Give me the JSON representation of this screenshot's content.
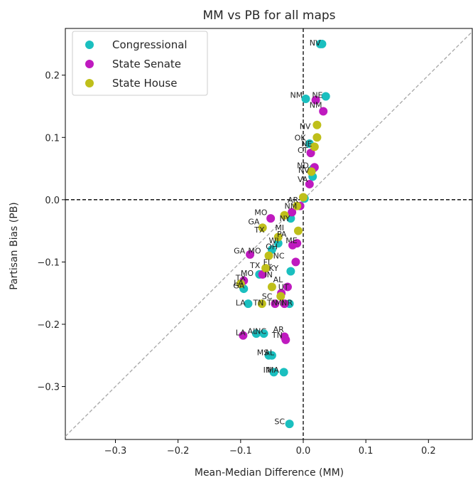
{
  "chart_data": {
    "type": "scatter",
    "title": "MM vs PB for all maps",
    "xlabel": "Mean-Median Difference (MM)",
    "ylabel": "Partisan Bias (PB)",
    "xlim": [
      -0.38,
      0.27
    ],
    "ylim": [
      -0.385,
      0.275
    ],
    "xticks": [
      -0.3,
      -0.2,
      -0.1,
      0.0,
      0.1,
      0.2
    ],
    "xtick_labels": [
      "−0.3",
      "−0.2",
      "−0.1",
      "0.0",
      "0.1",
      "0.2"
    ],
    "yticks": [
      0.2,
      0.1,
      0.0,
      -0.1,
      -0.2,
      -0.3
    ],
    "ytick_labels": [
      "0.2",
      "0.1",
      "0.0",
      "−0.1",
      "−0.2",
      "−0.3"
    ],
    "legend_position": "top-left",
    "grid": false,
    "reference_lines": [
      "x = 0",
      "y = 0",
      "y = x"
    ],
    "series": [
      {
        "name": "Congressional",
        "color": "#1abfbf",
        "points": [
          {
            "label": "NV",
            "x": 0.027,
            "y": 0.25
          },
          {
            "label": "",
            "x": 0.03,
            "y": 0.25
          },
          {
            "label": "NE",
            "x": 0.036,
            "y": 0.166
          },
          {
            "label": "NM",
            "x": 0.004,
            "y": 0.162
          },
          {
            "label": "",
            "x": 0.016,
            "y": 0.05
          },
          {
            "label": "",
            "x": 0.015,
            "y": 0.037
          },
          {
            "label": "",
            "x": 0.01,
            "y": 0.09
          },
          {
            "label": "",
            "x": 0.002,
            "y": 0.002
          },
          {
            "label": "",
            "x": -0.02,
            "y": -0.03
          },
          {
            "label": "",
            "x": -0.04,
            "y": -0.07
          },
          {
            "label": "",
            "x": -0.05,
            "y": -0.08
          },
          {
            "label": "",
            "x": -0.02,
            "y": -0.115
          },
          {
            "label": "",
            "x": -0.07,
            "y": -0.12
          },
          {
            "label": "",
            "x": -0.095,
            "y": -0.143
          },
          {
            "label": "",
            "x": -0.022,
            "y": -0.167
          },
          {
            "label": "LA",
            "x": -0.088,
            "y": -0.167
          },
          {
            "label": "AR",
            "x": -0.075,
            "y": -0.215
          },
          {
            "label": "NC",
            "x": -0.063,
            "y": -0.215
          },
          {
            "label": "MS",
            "x": -0.055,
            "y": -0.25
          },
          {
            "label": "",
            "x": -0.05,
            "y": -0.25
          },
          {
            "label": "MA",
            "x": -0.047,
            "y": -0.277
          },
          {
            "label": "",
            "x": -0.031,
            "y": -0.277
          },
          {
            "label": "SC",
            "x": -0.022,
            "y": -0.36
          }
        ]
      },
      {
        "name": "State Senate",
        "color": "#bf1abf",
        "points": [
          {
            "label": "",
            "x": 0.032,
            "y": 0.142
          },
          {
            "label": "",
            "x": 0.02,
            "y": 0.16
          },
          {
            "label": "",
            "x": 0.012,
            "y": 0.075
          },
          {
            "label": "",
            "x": 0.018,
            "y": 0.052
          },
          {
            "label": "",
            "x": 0.01,
            "y": 0.025
          },
          {
            "label": "",
            "x": -0.005,
            "y": -0.01
          },
          {
            "label": "",
            "x": -0.018,
            "y": -0.02
          },
          {
            "label": "",
            "x": -0.052,
            "y": -0.03
          },
          {
            "label": "",
            "x": -0.01,
            "y": -0.07
          },
          {
            "label": "",
            "x": -0.017,
            "y": -0.073
          },
          {
            "label": "",
            "x": -0.085,
            "y": -0.088
          },
          {
            "label": "",
            "x": -0.012,
            "y": -0.1
          },
          {
            "label": "",
            "x": -0.065,
            "y": -0.12
          },
          {
            "label": "",
            "x": -0.095,
            "y": -0.13
          },
          {
            "label": "",
            "x": -0.025,
            "y": -0.14
          },
          {
            "label": "",
            "x": -0.035,
            "y": -0.15
          },
          {
            "label": "",
            "x": -0.045,
            "y": -0.167
          },
          {
            "label": "",
            "x": -0.03,
            "y": -0.167
          },
          {
            "label": "LA",
            "x": -0.096,
            "y": -0.218
          },
          {
            "label": "TN",
            "x": -0.03,
            "y": -0.22
          },
          {
            "label": "",
            "x": -0.028,
            "y": -0.225
          }
        ]
      },
      {
        "name": "State House",
        "color": "#bfbf1a",
        "points": [
          {
            "label": "",
            "x": 0.022,
            "y": 0.12
          },
          {
            "label": "",
            "x": 0.022,
            "y": 0.1
          },
          {
            "label": "",
            "x": 0.018,
            "y": 0.085
          },
          {
            "label": "",
            "x": 0.013,
            "y": 0.045
          },
          {
            "label": "",
            "x": 0.0,
            "y": 0.004
          },
          {
            "label": "",
            "x": -0.01,
            "y": -0.01
          },
          {
            "label": "",
            "x": -0.03,
            "y": -0.025
          },
          {
            "label": "",
            "x": -0.065,
            "y": -0.045
          },
          {
            "label": "",
            "x": -0.008,
            "y": -0.05
          },
          {
            "label": "",
            "x": -0.04,
            "y": -0.06
          },
          {
            "label": "",
            "x": -0.055,
            "y": -0.09
          },
          {
            "label": "",
            "x": -0.06,
            "y": -0.11
          },
          {
            "label": "",
            "x": -0.1,
            "y": -0.135
          },
          {
            "label": "",
            "x": -0.05,
            "y": -0.14
          },
          {
            "label": "",
            "x": -0.066,
            "y": -0.167
          },
          {
            "label": "",
            "x": -0.036,
            "y": -0.155
          }
        ]
      }
    ],
    "annotations": [
      {
        "text": "NV",
        "x": 0.01,
        "y": 0.252
      },
      {
        "text": "NE",
        "x": 0.014,
        "y": 0.168
      },
      {
        "text": "NM",
        "x": -0.021,
        "y": 0.168
      },
      {
        "text": "NM",
        "x": 0.01,
        "y": 0.152
      },
      {
        "text": "NV",
        "x": -0.006,
        "y": 0.118
      },
      {
        "text": "OK",
        "x": -0.014,
        "y": 0.1
      },
      {
        "text": "NE",
        "x": -0.003,
        "y": 0.09
      },
      {
        "text": "CT",
        "x": -0.009,
        "y": 0.08
      },
      {
        "text": "ND",
        "x": -0.01,
        "y": 0.055
      },
      {
        "text": "NV",
        "x": -0.008,
        "y": 0.048
      },
      {
        "text": "VA",
        "x": -0.009,
        "y": 0.033
      },
      {
        "text": "MO",
        "x": -0.078,
        "y": -0.02
      },
      {
        "text": "GA",
        "x": -0.088,
        "y": -0.035
      },
      {
        "text": "TX",
        "x": -0.078,
        "y": -0.048
      },
      {
        "text": "ME",
        "x": -0.028,
        "y": -0.065
      },
      {
        "text": "GA",
        "x": -0.111,
        "y": -0.082
      },
      {
        "text": "MO",
        "x": -0.088,
        "y": -0.082
      },
      {
        "text": "TX",
        "x": -0.085,
        "y": -0.105
      },
      {
        "text": "MO",
        "x": -0.1,
        "y": -0.118
      },
      {
        "text": "TX",
        "x": -0.108,
        "y": -0.125
      },
      {
        "text": "LA",
        "x": -0.111,
        "y": -0.133
      },
      {
        "text": "GA",
        "x": -0.112,
        "y": -0.138
      },
      {
        "text": "SC",
        "x": -0.066,
        "y": -0.155
      },
      {
        "text": "LA",
        "x": -0.108,
        "y": -0.165
      },
      {
        "text": "TN",
        "x": -0.08,
        "y": -0.165
      },
      {
        "text": "TN",
        "x": -0.058,
        "y": -0.165
      },
      {
        "text": "MI",
        "x": -0.045,
        "y": -0.165
      },
      {
        "text": "NR",
        "x": -0.035,
        "y": -0.165
      },
      {
        "text": "LA",
        "x": -0.108,
        "y": -0.213
      },
      {
        "text": "AL",
        "x": -0.089,
        "y": -0.211
      },
      {
        "text": "NC",
        "x": -0.077,
        "y": -0.211
      },
      {
        "text": "AR",
        "x": -0.048,
        "y": -0.208
      },
      {
        "text": "TN",
        "x": -0.05,
        "y": -0.217
      },
      {
        "text": "MS",
        "x": -0.074,
        "y": -0.245
      },
      {
        "text": "AL",
        "x": -0.062,
        "y": -0.245
      },
      {
        "text": "IN",
        "x": -0.064,
        "y": -0.273
      },
      {
        "text": "MA",
        "x": -0.058,
        "y": -0.273
      },
      {
        "text": "SC",
        "x": -0.046,
        "y": -0.356
      },
      {
        "text": "AR",
        "x": -0.025,
        "y": 0.0
      },
      {
        "text": "NM",
        "x": -0.03,
        "y": -0.01
      },
      {
        "text": "NY",
        "x": -0.038,
        "y": -0.03
      },
      {
        "text": "MI",
        "x": -0.045,
        "y": -0.045
      },
      {
        "text": "PA",
        "x": -0.042,
        "y": -0.055
      },
      {
        "text": "WI",
        "x": -0.055,
        "y": -0.065
      },
      {
        "text": "OH",
        "x": -0.06,
        "y": -0.075
      },
      {
        "text": "NC",
        "x": -0.048,
        "y": -0.09
      },
      {
        "text": "FL",
        "x": -0.064,
        "y": -0.1
      },
      {
        "text": "KY",
        "x": -0.055,
        "y": -0.11
      },
      {
        "text": "IN",
        "x": -0.062,
        "y": -0.12
      },
      {
        "text": "AL",
        "x": -0.048,
        "y": -0.128
      },
      {
        "text": "UT",
        "x": -0.04,
        "y": -0.14
      }
    ]
  }
}
